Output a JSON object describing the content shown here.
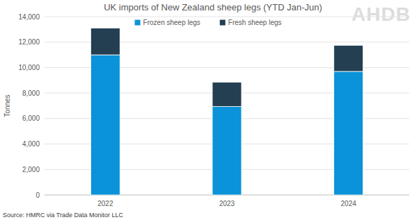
{
  "chart_data": {
    "type": "bar",
    "title": "UK imports of New Zealand sheep legs (YTD Jan-Jun)",
    "y_label": "Tonnes",
    "source": "Source: HMRC via Trade Data Monitor LLC",
    "logo_text": "AHDB",
    "categories": [
      "2022",
      "2023",
      "2024"
    ],
    "series": [
      {
        "name": "Frozen sheep legs",
        "color": "#0a93d8",
        "values": [
          11000,
          6950,
          9700
        ]
      },
      {
        "name": "Fresh sheep legs",
        "color": "#243f52",
        "values": [
          2100,
          1900,
          2050
        ]
      }
    ],
    "stacked": true,
    "ylim": [
      0,
      14000
    ],
    "yticks": [
      0,
      {
        "value": 2000,
        "label": "2,000"
      },
      {
        "value": 4000,
        "label": "4,000"
      },
      {
        "value": 6000,
        "label": "6,000"
      },
      {
        "value": 8000,
        "label": "8,000"
      },
      {
        "value": 10000,
        "label": "10,000"
      },
      {
        "value": 12000,
        "label": "12,000"
      },
      {
        "value": 14000,
        "label": "14,000"
      }
    ],
    "grid": true,
    "legend": "top"
  }
}
